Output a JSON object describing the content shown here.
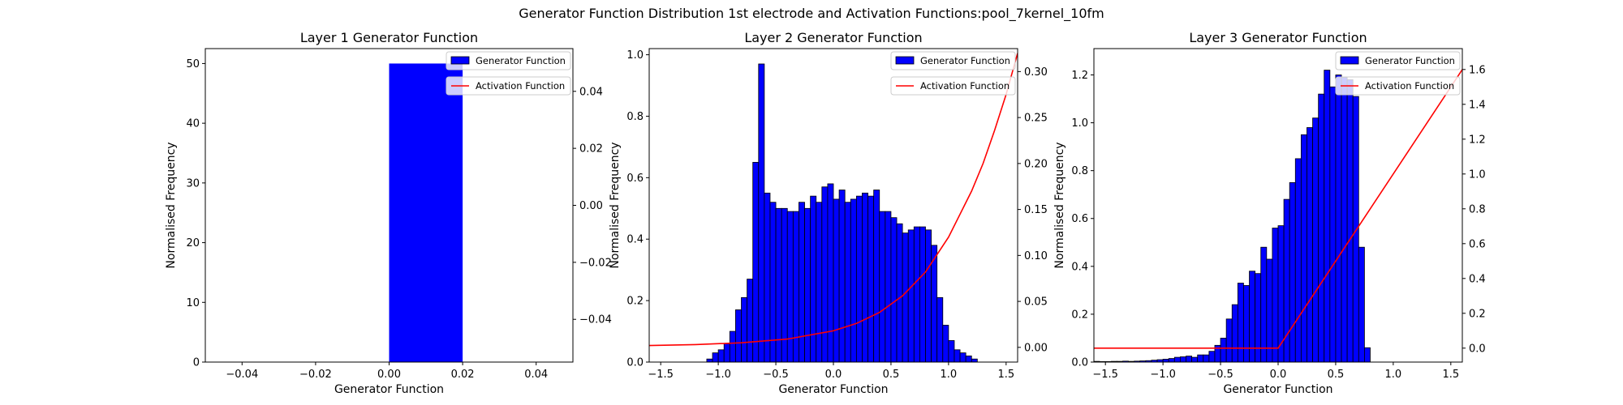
{
  "figure": {
    "suptitle": "Generator Function Distribution 1st electrode and Activation Functions:pool_7kernel_10fm"
  },
  "colors": {
    "bar": "#0000ff",
    "bar_edge": "#000000",
    "line": "#ff0000"
  },
  "chart_data": [
    {
      "type": "bar",
      "title": "Layer 1 Generator Function",
      "xlabel": "Generator Function",
      "ylabel": "Normalised Frequency",
      "xlim": [
        -0.05,
        0.05
      ],
      "ylim": [
        0,
        52.5
      ],
      "y2lim": [
        -0.055,
        0.055
      ],
      "xticks": [
        "-0.04",
        "-0.02",
        "0.00",
        "0.02",
        "0.04"
      ],
      "yticks": [
        "0",
        "10",
        "20",
        "30",
        "40",
        "50"
      ],
      "y2ticks": [
        "-0.04",
        "-0.02",
        "0.00",
        "0.02",
        "0.04"
      ],
      "bins": {
        "start": 0.0,
        "width": 0.02,
        "edges": false,
        "values": [
          50
        ]
      },
      "activation": {
        "points": []
      },
      "legend": {
        "position": "top-right",
        "items": [
          "Generator Function",
          "Activation Function"
        ]
      }
    },
    {
      "type": "bar",
      "title": "Layer 2 Generator Function",
      "xlabel": "Generator Function",
      "ylabel": "Normalised Frequency",
      "xlim": [
        -1.6,
        1.6
      ],
      "ylim": [
        0,
        1.02
      ],
      "y2lim": [
        -0.016,
        0.325
      ],
      "xticks": [
        "-1.5",
        "-1.0",
        "-0.5",
        "0.0",
        "0.5",
        "1.0",
        "1.5"
      ],
      "yticks": [
        "0.0",
        "0.2",
        "0.4",
        "0.6",
        "0.8",
        "1.0"
      ],
      "y2ticks": [
        "0.00",
        "0.05",
        "0.10",
        "0.15",
        "0.20",
        "0.25",
        "0.30"
      ],
      "bins": {
        "start": -1.1,
        "width": 0.05,
        "edges": true,
        "values": [
          0.01,
          0.03,
          0.04,
          0.06,
          0.1,
          0.17,
          0.21,
          0.27,
          0.65,
          0.97,
          0.55,
          0.52,
          0.5,
          0.5,
          0.49,
          0.49,
          0.52,
          0.5,
          0.54,
          0.52,
          0.57,
          0.58,
          0.53,
          0.56,
          0.52,
          0.53,
          0.54,
          0.55,
          0.54,
          0.56,
          0.49,
          0.49,
          0.47,
          0.45,
          0.42,
          0.43,
          0.44,
          0.44,
          0.43,
          0.38,
          0.21,
          0.12,
          0.07,
          0.04,
          0.03,
          0.02,
          0.01
        ]
      },
      "activation": {
        "points": [
          [
            -1.6,
            0.002
          ],
          [
            -1.2,
            0.003
          ],
          [
            -0.8,
            0.005
          ],
          [
            -0.4,
            0.009
          ],
          [
            0.0,
            0.018
          ],
          [
            0.2,
            0.026
          ],
          [
            0.4,
            0.038
          ],
          [
            0.6,
            0.056
          ],
          [
            0.8,
            0.082
          ],
          [
            1.0,
            0.12
          ],
          [
            1.1,
            0.145
          ],
          [
            1.2,
            0.17
          ],
          [
            1.3,
            0.2
          ],
          [
            1.4,
            0.236
          ],
          [
            1.5,
            0.275
          ],
          [
            1.6,
            0.32
          ]
        ]
      },
      "legend": {
        "position": "top-right",
        "items": [
          "Generator Function",
          "Activation Function"
        ]
      }
    },
    {
      "type": "bar",
      "title": "Layer 3 Generator Function",
      "xlabel": "Generator Function",
      "ylabel": "Normalised Frequency",
      "xlim": [
        -1.6,
        1.6
      ],
      "ylim": [
        0,
        1.31
      ],
      "y2lim": [
        -0.08,
        1.72
      ],
      "xticks": [
        "-1.5",
        "-1.0",
        "-0.5",
        "0.0",
        "0.5",
        "1.0",
        "1.5"
      ],
      "yticks": [
        "0.0",
        "0.2",
        "0.4",
        "0.6",
        "0.8",
        "1.0",
        "1.2"
      ],
      "y2ticks": [
        "0.0",
        "0.2",
        "0.4",
        "0.6",
        "0.8",
        "1.0",
        "1.2",
        "1.4",
        "1.6"
      ],
      "bins": {
        "start": -1.6,
        "width": 0.05,
        "edges": true,
        "values": [
          0.003,
          0.002,
          0.002,
          0.003,
          0.003,
          0.004,
          0.003,
          0.004,
          0.005,
          0.006,
          0.008,
          0.01,
          0.012,
          0.015,
          0.02,
          0.022,
          0.025,
          0.02,
          0.03,
          0.03,
          0.045,
          0.07,
          0.1,
          0.18,
          0.24,
          0.33,
          0.32,
          0.38,
          0.37,
          0.48,
          0.43,
          0.56,
          0.57,
          0.68,
          0.75,
          0.85,
          0.95,
          0.98,
          1.02,
          1.12,
          1.22,
          1.15,
          1.2,
          1.19,
          1.18,
          1.11,
          0.48,
          0.06
        ]
      },
      "activation": {
        "points": [
          [
            -1.6,
            0.0
          ],
          [
            0.0,
            0.0
          ],
          [
            1.6,
            1.6
          ]
        ]
      },
      "legend": {
        "position": "top-right",
        "items": [
          "Generator Function",
          "Activation Function"
        ]
      }
    }
  ]
}
